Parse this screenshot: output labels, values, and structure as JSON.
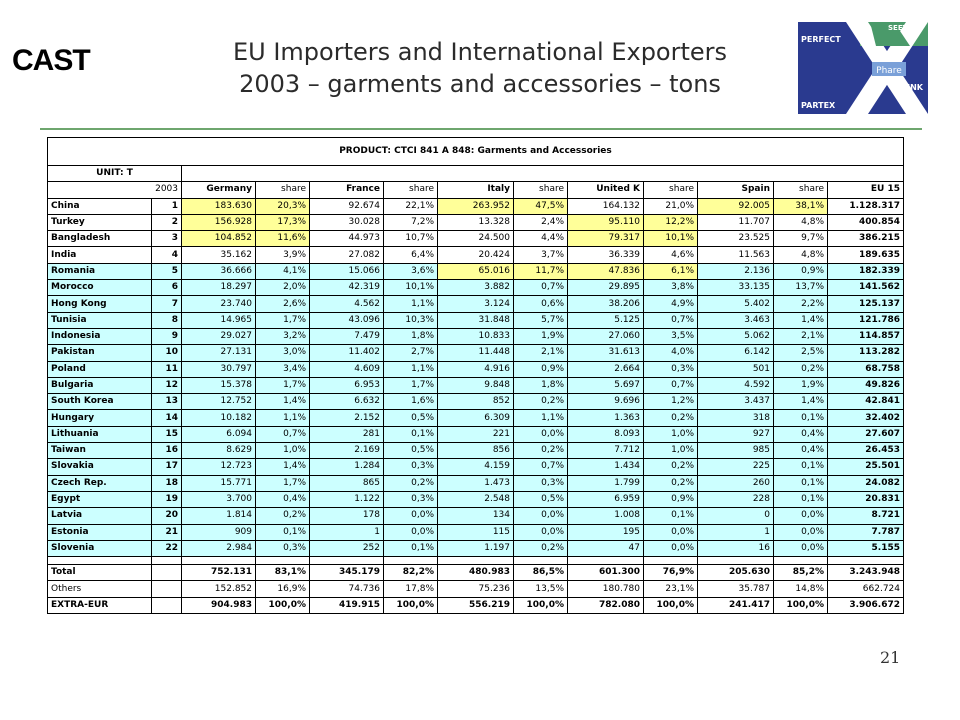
{
  "logo_left": {
    "text": "CAST"
  },
  "title": {
    "line1": "EU Importers and International Exporters",
    "line2": "2003 – garments and accessories – tons"
  },
  "logo_right": {
    "top": "SEETEX",
    "left_top": "PERFECT",
    "middle": "Phare",
    "left_bottom": "PARTEX",
    "bottom_right": "LINK"
  },
  "table": {
    "product": "PRODUCT: CTCI 841 A 848: Garments and Accessories",
    "unit": "UNIT: T",
    "year": "2003",
    "headers": [
      "Germany",
      "share",
      "France",
      "share",
      "Italy",
      "share",
      "United K",
      "share",
      "Spain",
      "share",
      "EU 15"
    ],
    "rows": [
      {
        "name": "China",
        "rank": "1",
        "cells": [
          "183.630",
          "20,3%",
          "92.674",
          "22,1%",
          "263.952",
          "47,5%",
          "164.132",
          "21,0%",
          "92.005",
          "38,1%",
          "1.128.317"
        ]
      },
      {
        "name": "Turkey",
        "rank": "2",
        "cells": [
          "156.928",
          "17,3%",
          "30.028",
          "7,2%",
          "13.328",
          "2,4%",
          "95.110",
          "12,2%",
          "11.707",
          "4,8%",
          "400.854"
        ]
      },
      {
        "name": "Bangladesh",
        "rank": "3",
        "cells": [
          "104.852",
          "11,6%",
          "44.973",
          "10,7%",
          "24.500",
          "4,4%",
          "79.317",
          "10,1%",
          "23.525",
          "9,7%",
          "386.215"
        ]
      },
      {
        "name": "India",
        "rank": "4",
        "cells": [
          "35.162",
          "3,9%",
          "27.082",
          "6,4%",
          "20.424",
          "3,7%",
          "36.339",
          "4,6%",
          "11.563",
          "4,8%",
          "189.635"
        ]
      },
      {
        "name": "Romania",
        "rank": "5",
        "cells": [
          "36.666",
          "4,1%",
          "15.066",
          "3,6%",
          "65.016",
          "11,7%",
          "47.836",
          "6,1%",
          "2.136",
          "0,9%",
          "182.339"
        ]
      },
      {
        "name": "Morocco",
        "rank": "6",
        "cells": [
          "18.297",
          "2,0%",
          "42.319",
          "10,1%",
          "3.882",
          "0,7%",
          "29.895",
          "3,8%",
          "33.135",
          "13,7%",
          "141.562"
        ]
      },
      {
        "name": "Hong Kong",
        "rank": "7",
        "cells": [
          "23.740",
          "2,6%",
          "4.562",
          "1,1%",
          "3.124",
          "0,6%",
          "38.206",
          "4,9%",
          "5.402",
          "2,2%",
          "125.137"
        ]
      },
      {
        "name": "Tunisia",
        "rank": "8",
        "cells": [
          "14.965",
          "1,7%",
          "43.096",
          "10,3%",
          "31.848",
          "5,7%",
          "5.125",
          "0,7%",
          "3.463",
          "1,4%",
          "121.786"
        ]
      },
      {
        "name": "Indonesia",
        "rank": "9",
        "cells": [
          "29.027",
          "3,2%",
          "7.479",
          "1,8%",
          "10.833",
          "1,9%",
          "27.060",
          "3,5%",
          "5.062",
          "2,1%",
          "114.857"
        ]
      },
      {
        "name": "Pakistan",
        "rank": "10",
        "cells": [
          "27.131",
          "3,0%",
          "11.402",
          "2,7%",
          "11.448",
          "2,1%",
          "31.613",
          "4,0%",
          "6.142",
          "2,5%",
          "113.282"
        ]
      },
      {
        "name": "Poland",
        "rank": "11",
        "cells": [
          "30.797",
          "3,4%",
          "4.609",
          "1,1%",
          "4.916",
          "0,9%",
          "2.664",
          "0,3%",
          "501",
          "0,2%",
          "68.758"
        ]
      },
      {
        "name": "Bulgaria",
        "rank": "12",
        "cells": [
          "15.378",
          "1,7%",
          "6.953",
          "1,7%",
          "9.848",
          "1,8%",
          "5.697",
          "0,7%",
          "4.592",
          "1,9%",
          "49.826"
        ]
      },
      {
        "name": "South Korea",
        "rank": "13",
        "cells": [
          "12.752",
          "1,4%",
          "6.632",
          "1,6%",
          "852",
          "0,2%",
          "9.696",
          "1,2%",
          "3.437",
          "1,4%",
          "42.841"
        ]
      },
      {
        "name": "Hungary",
        "rank": "14",
        "cells": [
          "10.182",
          "1,1%",
          "2.152",
          "0,5%",
          "6.309",
          "1,1%",
          "1.363",
          "0,2%",
          "318",
          "0,1%",
          "32.402"
        ]
      },
      {
        "name": "Lithuania",
        "rank": "15",
        "cells": [
          "6.094",
          "0,7%",
          "281",
          "0,1%",
          "221",
          "0,0%",
          "8.093",
          "1,0%",
          "927",
          "0,4%",
          "27.607"
        ]
      },
      {
        "name": "Taiwan",
        "rank": "16",
        "cells": [
          "8.629",
          "1,0%",
          "2.169",
          "0,5%",
          "856",
          "0,2%",
          "7.712",
          "1,0%",
          "985",
          "0,4%",
          "26.453"
        ]
      },
      {
        "name": "Slovakia",
        "rank": "17",
        "cells": [
          "12.723",
          "1,4%",
          "1.284",
          "0,3%",
          "4.159",
          "0,7%",
          "1.434",
          "0,2%",
          "225",
          "0,1%",
          "25.501"
        ]
      },
      {
        "name": "Czech Rep.",
        "rank": "18",
        "cells": [
          "15.771",
          "1,7%",
          "865",
          "0,2%",
          "1.473",
          "0,3%",
          "1.799",
          "0,2%",
          "260",
          "0,1%",
          "24.082"
        ]
      },
      {
        "name": "Egypt",
        "rank": "19",
        "cells": [
          "3.700",
          "0,4%",
          "1.122",
          "0,3%",
          "2.548",
          "0,5%",
          "6.959",
          "0,9%",
          "228",
          "0,1%",
          "20.831"
        ]
      },
      {
        "name": "Latvia",
        "rank": "20",
        "cells": [
          "1.814",
          "0,2%",
          "178",
          "0,0%",
          "134",
          "0,0%",
          "1.008",
          "0,1%",
          "0",
          "0,0%",
          "8.721"
        ]
      },
      {
        "name": "Estonia",
        "rank": "21",
        "cells": [
          "909",
          "0,1%",
          "1",
          "0,0%",
          "115",
          "0,0%",
          "195",
          "0,0%",
          "1",
          "0,0%",
          "7.787"
        ]
      },
      {
        "name": "Slovenia",
        "rank": "22",
        "cells": [
          "2.984",
          "0,3%",
          "252",
          "0,1%",
          "1.197",
          "0,2%",
          "47",
          "0,0%",
          "16",
          "0,0%",
          "5.155"
        ]
      }
    ],
    "highlights": {
      "0": [
        0,
        1,
        4,
        5,
        8,
        9
      ],
      "1": [
        0,
        1,
        6,
        7
      ],
      "2": [
        0,
        1,
        6,
        7
      ],
      "4": [
        4,
        5,
        6,
        7
      ]
    },
    "total": {
      "name": "Total",
      "cells": [
        "752.131",
        "83,1%",
        "345.179",
        "82,2%",
        "480.983",
        "86,5%",
        "601.300",
        "76,9%",
        "205.630",
        "85,2%",
        "3.243.948"
      ]
    },
    "others": {
      "name": "Others",
      "cells": [
        "152.852",
        "16,9%",
        "74.736",
        "17,8%",
        "75.236",
        "13,5%",
        "180.780",
        "23,1%",
        "35.787",
        "14,8%",
        "662.724"
      ]
    },
    "extra": {
      "name": "EXTRA-EUR",
      "cells": [
        "904.983",
        "100,0%",
        "419.915",
        "100,0%",
        "556.219",
        "100,0%",
        "782.080",
        "100,0%",
        "241.417",
        "100,0%",
        "3.906.672"
      ]
    }
  },
  "colors": {
    "highlight": "#ffff99",
    "cyan": "#ccffff",
    "divider": "#6ea66e"
  },
  "page_number": "21"
}
